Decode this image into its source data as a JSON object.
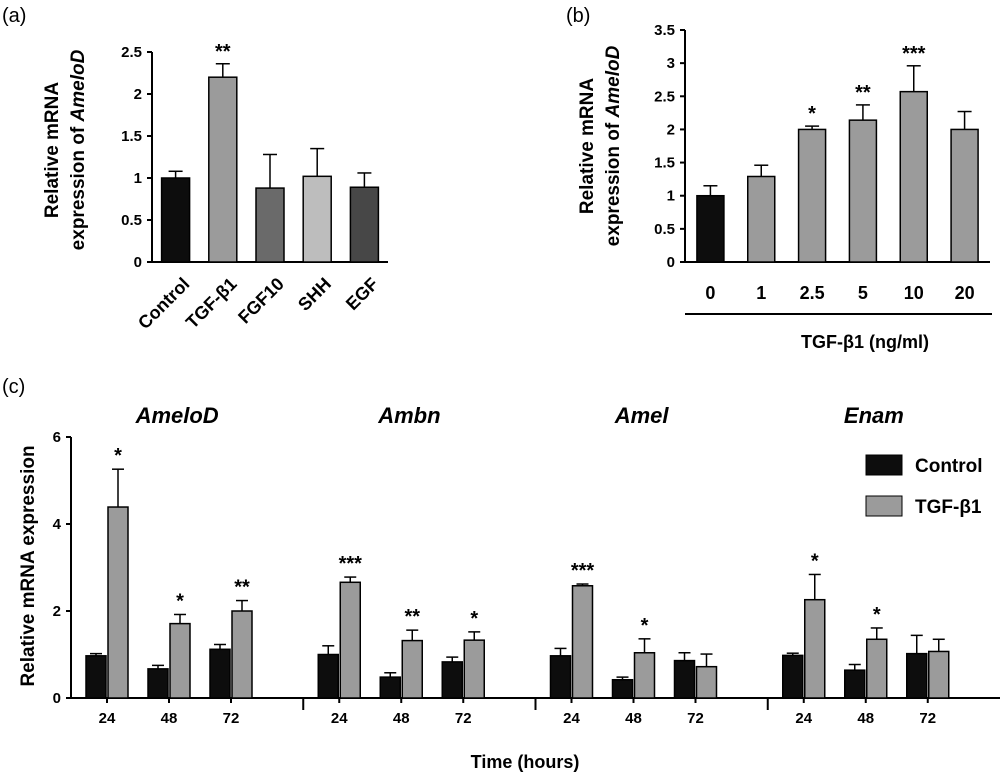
{
  "panels": {
    "a": {
      "label": "(a)",
      "ylabel_line1": "Relative mRNA",
      "ylabel_line2_prefix": "expression of ",
      "ylabel_line2_gene": "AmeloD",
      "ytick_labels": [
        "0",
        "0.5",
        "1",
        "1.5",
        "2",
        "2.5"
      ]
    },
    "b": {
      "label": "(b)",
      "ylabel_line1": "Relative mRNA",
      "ylabel_line2_prefix": "expression of ",
      "ylabel_line2_gene": "AmeloD",
      "ytick_labels": [
        "0",
        "0.5",
        "1",
        "1.5",
        "2",
        "2.5",
        "3",
        "3.5"
      ],
      "xlabel": "TGF-β1 (ng/ml)"
    },
    "c": {
      "label": "(c)",
      "ylabel": "Relative mRNA expression",
      "xlabel": "Time (hours)",
      "ytick_labels": [
        "0",
        "2",
        "4",
        "6"
      ],
      "legend": [
        "Control",
        "TGF-β1"
      ]
    }
  },
  "colors": {
    "control": "#0d0d0d",
    "tgf": "#9b9b9b",
    "fgf10": "#6a6a6a",
    "shh": "#bdbdbd",
    "egf": "#474747"
  },
  "chart_data": [
    {
      "type": "bar",
      "panel": "a",
      "title": "",
      "xlabel": "",
      "ylabel": "Relative mRNA expression of AmeloD",
      "ylim": [
        0,
        2.5
      ],
      "categories": [
        "Control",
        "TGF-β1",
        "FGF10",
        "SHH",
        "EGF"
      ],
      "values": [
        1.0,
        2.2,
        0.88,
        1.02,
        0.89
      ],
      "errors": [
        0.08,
        0.16,
        0.4,
        0.33,
        0.17
      ],
      "significance": [
        "",
        "**",
        "",
        "",
        ""
      ],
      "colors": [
        "#0d0d0d",
        "#9b9b9b",
        "#6a6a6a",
        "#bdbdbd",
        "#474747"
      ]
    },
    {
      "type": "bar",
      "panel": "b",
      "title": "",
      "xlabel": "TGF-β1 (ng/ml)",
      "ylabel": "Relative mRNA expression of AmeloD",
      "ylim": [
        0,
        3.5
      ],
      "categories": [
        "0",
        "1",
        "2.5",
        "5",
        "10",
        "20"
      ],
      "values": [
        1.0,
        1.29,
        2.0,
        2.14,
        2.57,
        2.0
      ],
      "errors": [
        0.15,
        0.17,
        0.05,
        0.23,
        0.39,
        0.27
      ],
      "significance": [
        "",
        "",
        "*",
        "**",
        "***",
        ""
      ],
      "colors": [
        "#0d0d0d",
        "#9b9b9b",
        "#9b9b9b",
        "#9b9b9b",
        "#9b9b9b",
        "#9b9b9b"
      ]
    },
    {
      "type": "bar",
      "panel": "c",
      "title": "",
      "xlabel": "Time (hours)",
      "ylabel": "Relative mRNA expression",
      "ylim": [
        0,
        6
      ],
      "legend_position": "right",
      "groups": [
        {
          "gene": "AmeloD",
          "times": [
            "24",
            "48",
            "72"
          ],
          "series": [
            {
              "name": "Control",
              "values": [
                0.97,
                0.67,
                1.12
              ],
              "errors": [
                0.05,
                0.08,
                0.11
              ]
            },
            {
              "name": "TGF-β1",
              "values": [
                4.39,
                1.71,
                2.0
              ],
              "errors": [
                0.87,
                0.21,
                0.24
              ]
            }
          ],
          "significance": [
            "*",
            "*",
            "**"
          ]
        },
        {
          "gene": "Ambn",
          "times": [
            "24",
            "48",
            "72"
          ],
          "series": [
            {
              "name": "Control",
              "values": [
                1.0,
                0.48,
                0.83
              ],
              "errors": [
                0.2,
                0.1,
                0.11
              ]
            },
            {
              "name": "TGF-β1",
              "values": [
                2.66,
                1.32,
                1.33
              ],
              "errors": [
                0.12,
                0.24,
                0.19
              ]
            }
          ],
          "significance": [
            "***",
            "**",
            "*"
          ]
        },
        {
          "gene": "Amel",
          "times": [
            "24",
            "48",
            "72"
          ],
          "series": [
            {
              "name": "Control",
              "values": [
                0.97,
                0.42,
                0.86
              ],
              "errors": [
                0.17,
                0.06,
                0.18
              ]
            },
            {
              "name": "TGF-β1",
              "values": [
                2.58,
                1.04,
                0.72
              ],
              "errors": [
                0.04,
                0.32,
                0.29
              ]
            }
          ],
          "significance": [
            "***",
            "*",
            ""
          ]
        },
        {
          "gene": "Enam",
          "times": [
            "24",
            "48",
            "72"
          ],
          "series": [
            {
              "name": "Control",
              "values": [
                0.98,
                0.64,
                1.02
              ],
              "errors": [
                0.05,
                0.13,
                0.42
              ]
            },
            {
              "name": "TGF-β1",
              "values": [
                2.26,
                1.35,
                1.07
              ],
              "errors": [
                0.58,
                0.26,
                0.28
              ]
            }
          ],
          "significance": [
            "*",
            "*",
            ""
          ]
        }
      ]
    }
  ]
}
